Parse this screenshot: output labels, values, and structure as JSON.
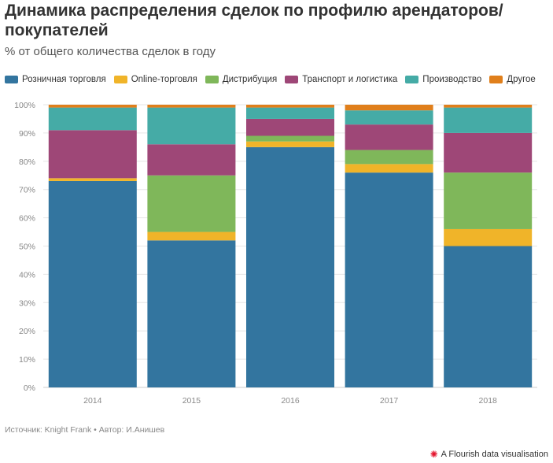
{
  "chart_data": {
    "type": "bar",
    "stacked": true,
    "title": "Динамика распределения сделок по профилю арендаторов/ покупателей",
    "subtitle": "% от общего количества сделок в году",
    "categories": [
      "2014",
      "2015",
      "2016",
      "2017",
      "2018"
    ],
    "series": [
      {
        "name": "Розничная торговля",
        "color": "#33759f",
        "values": [
          73,
          52,
          85,
          76,
          50
        ]
      },
      {
        "name": "Online-торговля",
        "color": "#f0b429",
        "values": [
          1,
          3,
          2,
          3,
          6
        ]
      },
      {
        "name": "Дистрибуция",
        "color": "#7fb75a",
        "values": [
          0,
          20,
          2,
          5,
          20
        ]
      },
      {
        "name": "Транспорт и логистика",
        "color": "#9e4777",
        "values": [
          17,
          11,
          6,
          9,
          14
        ]
      },
      {
        "name": "Производство",
        "color": "#45aba6",
        "values": [
          8,
          13,
          4,
          5,
          9
        ]
      },
      {
        "name": "Другое",
        "color": "#e07f1b",
        "values": [
          1,
          1,
          1,
          2,
          1
        ]
      }
    ],
    "y_ticks": [
      "0%",
      "10%",
      "20%",
      "30%",
      "40%",
      "50%",
      "60%",
      "70%",
      "80%",
      "90%",
      "100%"
    ],
    "ylim": [
      0,
      100
    ],
    "xlabel": "",
    "ylabel": "",
    "grid": true,
    "legend_position": "top"
  },
  "footer": {
    "source": "Источник: Knight Frank • Автор: И.Анишев",
    "credit": "A Flourish data visualisation",
    "credit_icon": "flourish-logo-icon"
  }
}
